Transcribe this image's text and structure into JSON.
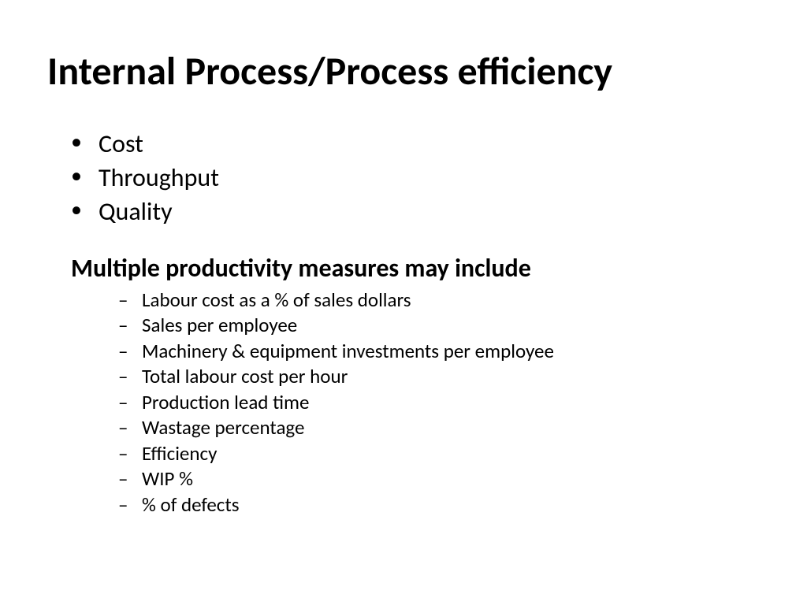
{
  "title": "Internal Process/Process efficiency",
  "mainItems": [
    "Cost",
    "Throughput",
    "Quality"
  ],
  "subtitle": "Multiple productivity measures may include",
  "subItems": [
    "Labour cost as a % of sales dollars",
    "Sales per employee",
    "Machinery & equipment investments per employee",
    "Total labour cost per hour",
    "Production lead time",
    "Wastage percentage",
    "Efficiency",
    "WIP %",
    "% of defects"
  ],
  "styling": {
    "background_color": "#ffffff",
    "text_color": "#000000",
    "title_fontsize": 50,
    "title_weight": "bold",
    "main_item_fontsize": 32,
    "subtitle_fontsize": 32,
    "subtitle_weight": "bold",
    "sub_item_fontsize": 25,
    "main_bullet": "•",
    "sub_bullet": "–",
    "font_family": "Calibri"
  }
}
